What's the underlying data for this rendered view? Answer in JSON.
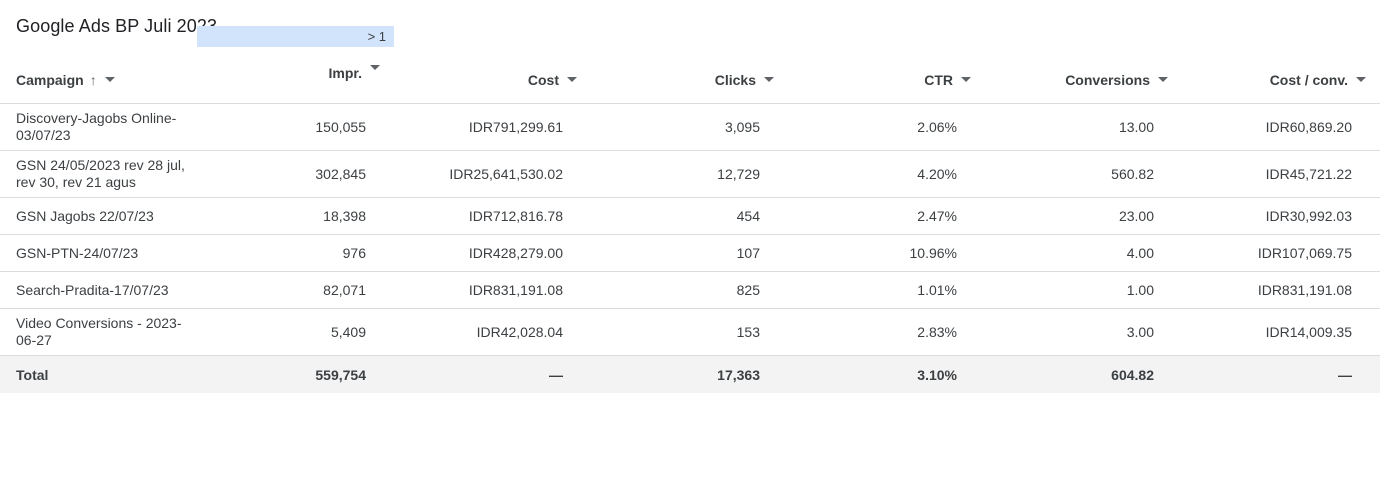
{
  "report": {
    "title": "Google Ads BP Juli 2023"
  },
  "columns": {
    "campaign": "Campaign",
    "campaign_sort_icon": "arrow-up-icon",
    "impr": "Impr.",
    "impr_filter": "> 1",
    "cost": "Cost",
    "clicks": "Clicks",
    "ctr": "CTR",
    "conversions": "Conversions",
    "cost_per_conv": "Cost / conv."
  },
  "rows": [
    {
      "campaign": "Discovery-Jagobs Online-03/07/23",
      "impr": "150,055",
      "cost": "IDR791,299.61",
      "clicks": "3,095",
      "ctr": "2.06%",
      "conversions": "13.00",
      "cost_per_conv": "IDR60,869.20"
    },
    {
      "campaign": "GSN 24/05/2023 rev 28 jul, rev 30, rev 21 agus",
      "impr": "302,845",
      "cost": "IDR25,641,530.02",
      "clicks": "12,729",
      "ctr": "4.20%",
      "conversions": "560.82",
      "cost_per_conv": "IDR45,721.22"
    },
    {
      "campaign": "GSN Jagobs 22/07/23",
      "impr": "18,398",
      "cost": "IDR712,816.78",
      "clicks": "454",
      "ctr": "2.47%",
      "conversions": "23.00",
      "cost_per_conv": "IDR30,992.03"
    },
    {
      "campaign": "GSN-PTN-24/07/23",
      "impr": "976",
      "cost": "IDR428,279.00",
      "clicks": "107",
      "ctr": "10.96%",
      "conversions": "4.00",
      "cost_per_conv": "IDR107,069.75"
    },
    {
      "campaign": "Search-Pradita-17/07/23",
      "impr": "82,071",
      "cost": "IDR831,191.08",
      "clicks": "825",
      "ctr": "1.01%",
      "conversions": "1.00",
      "cost_per_conv": "IDR831,191.08"
    },
    {
      "campaign": "Video Conversions - 2023-06-27",
      "impr": "5,409",
      "cost": "IDR42,028.04",
      "clicks": "153",
      "ctr": "2.83%",
      "conversions": "3.00",
      "cost_per_conv": "IDR14,009.35"
    }
  ],
  "total": {
    "label": "Total",
    "impr": "559,754",
    "cost": "—",
    "clicks": "17,363",
    "ctr": "3.10%",
    "conversions": "604.82",
    "cost_per_conv": "—"
  },
  "colors": {
    "filter_chip": "#d2e3fc",
    "total_row_bg": "#f3f3f3",
    "border": "#dadce0"
  }
}
